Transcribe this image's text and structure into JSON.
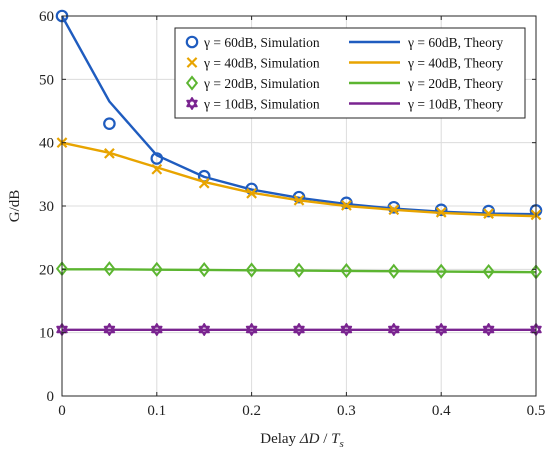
{
  "chart_data": {
    "type": "line",
    "xlabel": "Delay ΔD / T_s",
    "xlabel_parts": {
      "prefix": "Delay ",
      "delta": "ΔD",
      "slash": " / ",
      "T": "T",
      "sub": "s"
    },
    "ylabel": "G/dB",
    "xlim": [
      0,
      0.5
    ],
    "ylim": [
      0,
      60
    ],
    "x_ticks": [
      0,
      0.1,
      0.2,
      0.3,
      0.4,
      0.5
    ],
    "x_tick_labels": [
      "0",
      "0.1",
      "0.2",
      "0.3",
      "0.4",
      "0.5"
    ],
    "y_ticks": [
      0,
      10,
      20,
      30,
      40,
      50,
      60
    ],
    "y_tick_labels": [
      "0",
      "10",
      "20",
      "30",
      "40",
      "50",
      "60"
    ],
    "grid": true,
    "legend_position": "top-right",
    "x": [
      0,
      0.05,
      0.1,
      0.15,
      0.2,
      0.25,
      0.3,
      0.35,
      0.4,
      0.45,
      0.5
    ],
    "series": [
      {
        "gamma": "60dB",
        "color": "#1f5cbf",
        "marker": "circle",
        "sim_label": "γ = 60dB, Simulation",
        "theory_label": "γ = 60dB, Theory",
        "sim": [
          60.0,
          43.0,
          37.5,
          34.7,
          32.7,
          31.4,
          30.5,
          29.8,
          29.4,
          29.2,
          29.3
        ],
        "theory": [
          60.0,
          46.5,
          38.0,
          34.6,
          32.6,
          31.3,
          30.3,
          29.6,
          29.1,
          28.8,
          28.7
        ]
      },
      {
        "gamma": "40dB",
        "color": "#e8a400",
        "marker": "x",
        "sim_label": "γ = 40dB, Simulation",
        "theory_label": "γ = 40dB, Theory",
        "sim": [
          40.0,
          38.3,
          35.8,
          33.6,
          32.0,
          30.9,
          30.1,
          29.4,
          29.0,
          28.8,
          28.6
        ],
        "theory": [
          40.0,
          38.4,
          36.1,
          33.8,
          32.1,
          30.9,
          30.0,
          29.4,
          28.9,
          28.6,
          28.4
        ]
      },
      {
        "gamma": "20dB",
        "color": "#5cb531",
        "marker": "diamond",
        "sim_label": "γ = 20dB, Simulation",
        "theory_label": "γ = 20dB, Theory",
        "sim": [
          20.1,
          20.1,
          20.0,
          19.95,
          19.9,
          19.85,
          19.8,
          19.7,
          19.7,
          19.65,
          19.6
        ],
        "theory": [
          20.0,
          20.0,
          19.95,
          19.9,
          19.85,
          19.8,
          19.75,
          19.7,
          19.65,
          19.6,
          19.55
        ]
      },
      {
        "gamma": "10dB",
        "color": "#7a2490",
        "marker": "hexagram",
        "sim_label": "γ = 10dB, Simulation",
        "theory_label": "γ = 10dB, Theory",
        "sim": [
          10.5,
          10.5,
          10.5,
          10.5,
          10.5,
          10.5,
          10.5,
          10.5,
          10.5,
          10.5,
          10.5
        ],
        "theory": [
          10.45,
          10.45,
          10.45,
          10.45,
          10.45,
          10.45,
          10.45,
          10.45,
          10.45,
          10.45,
          10.45
        ]
      }
    ]
  }
}
